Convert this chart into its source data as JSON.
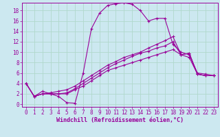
{
  "xlabel": "Windchill (Refroidissement éolien,°C)",
  "bg_color": "#cce8f0",
  "line_color": "#990099",
  "grid_color": "#b0d8cc",
  "xlim": [
    -0.5,
    23.5
  ],
  "ylim": [
    -0.5,
    19.5
  ],
  "xticks": [
    0,
    1,
    2,
    3,
    4,
    5,
    6,
    7,
    8,
    9,
    10,
    11,
    12,
    13,
    14,
    15,
    16,
    17,
    18,
    19,
    20,
    21,
    22,
    23
  ],
  "yticks": [
    0,
    2,
    4,
    6,
    8,
    10,
    12,
    14,
    16,
    18
  ],
  "x_vals": [
    0,
    1,
    2,
    3,
    4,
    5,
    6,
    7,
    8,
    9,
    10,
    11,
    12,
    13,
    14,
    15,
    16,
    17,
    18,
    19,
    20,
    21,
    22,
    23
  ],
  "series": [
    [
      4.0,
      1.5,
      2.5,
      2.0,
      1.5,
      0.3,
      0.2,
      6.0,
      14.5,
      17.5,
      19.0,
      19.3,
      19.5,
      19.2,
      18.0,
      16.0,
      16.5,
      16.5,
      11.5,
      10.0,
      9.5,
      6.0,
      5.8,
      5.5
    ],
    [
      4.0,
      1.5,
      2.0,
      2.0,
      2.0,
      2.0,
      2.8,
      3.5,
      4.5,
      5.5,
      6.5,
      7.0,
      7.5,
      8.0,
      8.5,
      9.0,
      9.5,
      10.0,
      10.5,
      9.5,
      9.0,
      5.8,
      5.5,
      5.5
    ],
    [
      4.0,
      1.5,
      2.0,
      2.0,
      2.0,
      2.2,
      3.0,
      4.0,
      5.0,
      6.0,
      7.0,
      7.8,
      8.5,
      9.2,
      9.8,
      10.2,
      10.8,
      11.2,
      12.0,
      9.5,
      9.8,
      5.8,
      5.5,
      5.5
    ],
    [
      4.0,
      1.5,
      2.0,
      2.2,
      2.5,
      2.8,
      3.5,
      4.5,
      5.5,
      6.5,
      7.5,
      8.2,
      9.0,
      9.5,
      10.0,
      10.8,
      11.5,
      12.2,
      13.0,
      9.5,
      9.8,
      5.8,
      5.5,
      5.5
    ]
  ],
  "tick_fontsize": 5.5,
  "label_fontsize": 6.0
}
